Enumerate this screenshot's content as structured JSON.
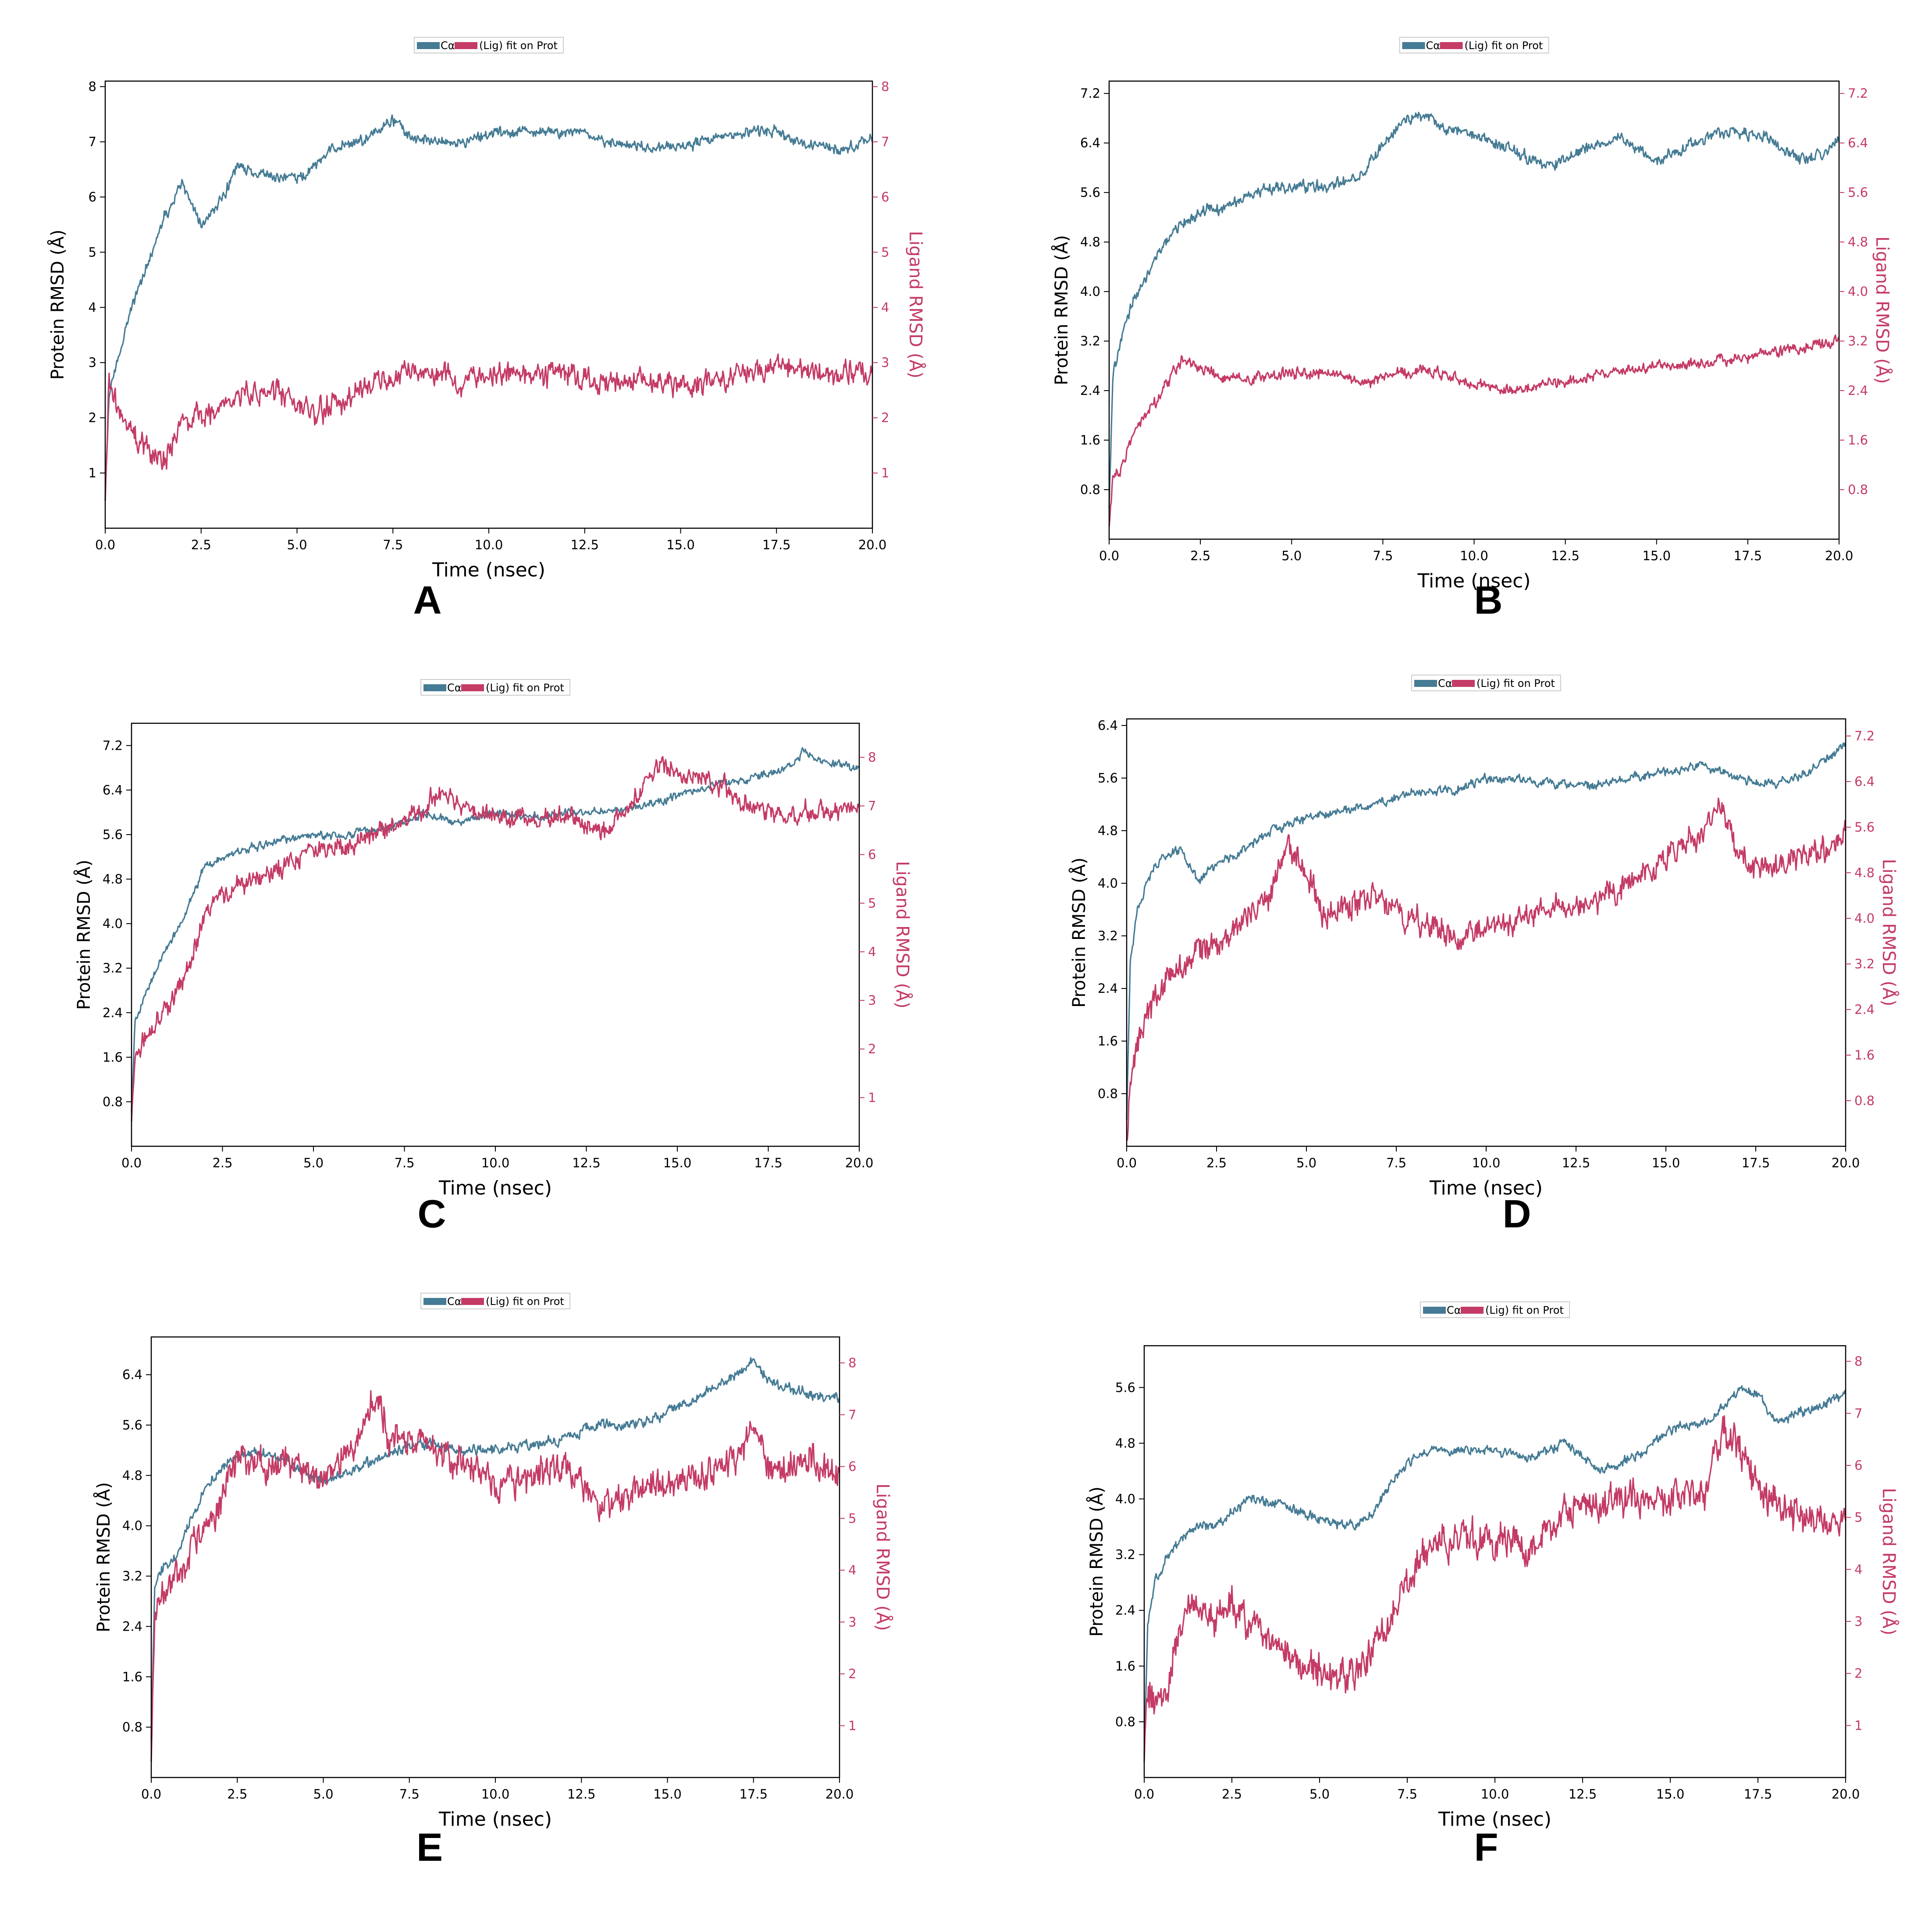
{
  "figure": {
    "panel_letters": [
      "A",
      "B",
      "C",
      "D",
      "E",
      "F"
    ],
    "colors": {
      "protein": "#457B94",
      "ligand": "#C43B65",
      "axis": "#000000",
      "legend_border": "#cccccc"
    }
  },
  "chart_data": [
    {
      "panel": "A",
      "type": "line",
      "legend": {
        "protein_label": "Cα",
        "ligand_label": "(Lig) fit on Prot",
        "placement": "top-center"
      },
      "xlabel": "Time (nsec)",
      "ylabel_left": "Protein RMSD (Å)",
      "ylabel_right": "Ligand RMSD (Å)",
      "xlim": [
        0,
        20
      ],
      "x_ticks": [
        "0.0",
        "2.5",
        "5.0",
        "7.5",
        "10.0",
        "12.5",
        "15.0",
        "17.5",
        "20.0"
      ],
      "ylim_left": [
        0,
        8.1
      ],
      "y_ticks_left": [
        "1",
        "2",
        "3",
        "4",
        "5",
        "6",
        "7",
        "8"
      ],
      "ylim_right": [
        0,
        8.1
      ],
      "y_ticks_right": [
        "1",
        "2",
        "3",
        "4",
        "5",
        "6",
        "7",
        "8"
      ],
      "grid": false,
      "series": [
        {
          "name": "Cα",
          "axis": "left",
          "noise": 0.15,
          "x": [
            0,
            0.1,
            0.3,
            0.6,
            1,
            1.5,
            2,
            2.5,
            3,
            3.5,
            4,
            5,
            6,
            7,
            7.5,
            8,
            9,
            10,
            11,
            12,
            13,
            14,
            15,
            16,
            17,
            17.5,
            18,
            19,
            20
          ],
          "y": [
            0.5,
            2.4,
            3.0,
            3.8,
            4.6,
            5.6,
            6.2,
            5.5,
            5.9,
            6.6,
            6.4,
            6.3,
            6.9,
            7.1,
            7.4,
            7.1,
            7.0,
            7.1,
            7.2,
            7.2,
            7.0,
            6.9,
            6.9,
            7.1,
            7.2,
            7.2,
            7.0,
            6.9,
            7.0
          ]
        },
        {
          "name": "(Lig) fit on Prot",
          "axis": "right",
          "noise": 0.32,
          "x": [
            0,
            0.1,
            0.3,
            0.7,
            1,
            1.5,
            2,
            2.5,
            3,
            4,
            5,
            5.5,
            6,
            7,
            8,
            9,
            10,
            11,
            12,
            13,
            14,
            15,
            16,
            17,
            17.5,
            18,
            19,
            20
          ],
          "y": [
            0.5,
            2.7,
            2.2,
            1.7,
            1.5,
            1.2,
            1.9,
            2.0,
            2.2,
            2.5,
            2.3,
            2.0,
            2.3,
            2.6,
            2.9,
            2.7,
            2.7,
            2.8,
            2.8,
            2.6,
            2.7,
            2.6,
            2.7,
            2.8,
            3.0,
            2.9,
            2.8,
            2.8
          ]
        }
      ]
    },
    {
      "panel": "B",
      "type": "line",
      "legend": {
        "protein_label": "Cα",
        "ligand_label": "(Lig) fit on Prot",
        "placement": "top-center"
      },
      "xlabel": "Time (nsec)",
      "ylabel_left": "Protein RMSD (Å)",
      "ylabel_right": "Ligand RMSD (Å)",
      "xlim": [
        0,
        20
      ],
      "x_ticks": [
        "0.0",
        "2.5",
        "5.0",
        "7.5",
        "10.0",
        "12.5",
        "15.0",
        "17.5",
        "20.0"
      ],
      "ylim_left": [
        0,
        7.4
      ],
      "y_ticks_left": [
        "0.8",
        "1.6",
        "2.4",
        "3.2",
        "4.0",
        "4.8",
        "5.6",
        "6.4",
        "7.2"
      ],
      "ylim_right": [
        0,
        7.4
      ],
      "y_ticks_right": [
        "0.8",
        "1.6",
        "2.4",
        "3.2",
        "4.0",
        "4.8",
        "5.6",
        "6.4",
        "7.2"
      ],
      "grid": false,
      "series": [
        {
          "name": "Cα",
          "axis": "left",
          "noise": 0.14,
          "x": [
            0,
            0.1,
            0.3,
            0.7,
            1,
            1.5,
            2,
            2.5,
            3,
            4,
            5,
            6,
            7,
            7.5,
            8,
            8.5,
            9,
            10,
            11,
            12,
            13,
            14,
            15,
            16,
            17,
            18,
            19,
            20
          ],
          "y": [
            0.5,
            2.6,
            3.2,
            3.9,
            4.2,
            4.8,
            5.1,
            5.3,
            5.3,
            5.6,
            5.7,
            5.7,
            5.9,
            6.4,
            6.7,
            6.9,
            6.7,
            6.5,
            6.3,
            6.0,
            6.3,
            6.5,
            6.1,
            6.4,
            6.6,
            6.5,
            6.1,
            6.4
          ]
        },
        {
          "name": "(Lig) fit on Prot",
          "axis": "right",
          "noise": 0.13,
          "x": [
            0,
            0.1,
            0.3,
            0.7,
            1,
            1.5,
            2,
            2.5,
            3,
            4,
            5,
            6,
            7,
            8,
            9,
            10,
            11,
            12,
            13,
            14,
            15,
            16,
            17,
            18,
            19,
            20
          ],
          "y": [
            0.2,
            1.0,
            1.1,
            1.8,
            2.0,
            2.4,
            2.9,
            2.8,
            2.6,
            2.6,
            2.7,
            2.7,
            2.5,
            2.7,
            2.7,
            2.5,
            2.4,
            2.5,
            2.6,
            2.7,
            2.8,
            2.8,
            2.9,
            3.0,
            3.1,
            3.2
          ]
        }
      ]
    },
    {
      "panel": "C",
      "type": "line",
      "legend": {
        "protein_label": "Cα",
        "ligand_label": "(Lig) fit on Prot",
        "placement": "top-center"
      },
      "xlabel": "Time (nsec)",
      "ylabel_left": "Protein RMSD (Å)",
      "ylabel_right": "Ligand RMSD (Å)",
      "xlim": [
        0,
        20
      ],
      "x_ticks": [
        "0.0",
        "2.5",
        "5.0",
        "7.5",
        "10.0",
        "12.5",
        "15.0",
        "17.5",
        "20.0"
      ],
      "ylim_left": [
        0,
        7.6
      ],
      "y_ticks_left": [
        "0.8",
        "1.6",
        "2.4",
        "3.2",
        "4.0",
        "4.8",
        "5.6",
        "6.4",
        "7.2"
      ],
      "ylim_right": [
        0,
        8.7
      ],
      "y_ticks_right": [
        "1",
        "2",
        "3",
        "4",
        "5",
        "6",
        "7",
        "8"
      ],
      "grid": false,
      "series": [
        {
          "name": "Cα",
          "axis": "left",
          "noise": 0.1,
          "x": [
            0,
            0.1,
            0.3,
            0.7,
            1,
            1.5,
            2,
            2.5,
            3,
            4,
            5,
            6,
            7,
            8,
            9,
            10,
            11,
            12,
            13,
            14,
            15,
            16,
            17,
            18,
            18.5,
            19,
            20
          ],
          "y": [
            0.6,
            2.3,
            2.6,
            3.2,
            3.6,
            4.2,
            5.0,
            5.2,
            5.3,
            5.5,
            5.6,
            5.6,
            5.7,
            6.0,
            5.8,
            6.0,
            5.9,
            6.0,
            6.0,
            6.1,
            6.3,
            6.5,
            6.6,
            6.8,
            7.1,
            6.9,
            6.8
          ]
        },
        {
          "name": "(Lig) fit on Prot",
          "axis": "right",
          "noise": 0.3,
          "x": [
            0,
            0.1,
            0.3,
            0.7,
            1,
            1.5,
            2,
            2.5,
            3,
            4,
            5,
            6,
            7,
            8,
            8.5,
            9,
            10,
            11,
            12,
            13,
            14,
            14.5,
            15,
            16,
            17,
            18,
            19,
            20
          ],
          "y": [
            0.5,
            1.7,
            2.1,
            2.6,
            2.8,
            3.5,
            4.7,
            5.2,
            5.4,
            5.7,
            6.1,
            6.2,
            6.5,
            6.9,
            7.3,
            7.0,
            6.8,
            6.7,
            6.8,
            6.4,
            7.3,
            7.9,
            7.7,
            7.5,
            7.0,
            6.8,
            6.9,
            7.0
          ]
        }
      ]
    },
    {
      "panel": "D",
      "type": "line",
      "legend": {
        "protein_label": "Cα",
        "ligand_label": "(Lig) fit on Prot",
        "placement": "top-center"
      },
      "xlabel": "Time (nsec)",
      "ylabel_left": "Protein RMSD (Å)",
      "ylabel_right": "Ligand RMSD (Å)",
      "xlim": [
        0,
        20
      ],
      "x_ticks": [
        "0.0",
        "2.5",
        "5.0",
        "7.5",
        "10.0",
        "12.5",
        "15.0",
        "17.5",
        "20.0"
      ],
      "ylim_left": [
        0,
        6.5
      ],
      "y_ticks_left": [
        "0.8",
        "1.6",
        "2.4",
        "3.2",
        "4.0",
        "4.8",
        "5.6",
        "6.4"
      ],
      "ylim_right": [
        0,
        7.5
      ],
      "y_ticks_right": [
        "0.8",
        "1.6",
        "2.4",
        "3.2",
        "4.0",
        "4.8",
        "5.6",
        "6.4",
        "7.2"
      ],
      "grid": false,
      "series": [
        {
          "name": "Cα",
          "axis": "left",
          "noise": 0.1,
          "x": [
            0,
            0.1,
            0.3,
            0.7,
            1,
            1.5,
            2,
            2.5,
            3,
            4,
            5,
            6,
            7,
            8,
            9,
            10,
            11,
            12,
            13,
            14,
            15,
            16,
            17,
            18,
            19,
            20
          ],
          "y": [
            0.4,
            2.8,
            3.6,
            4.2,
            4.4,
            4.5,
            4.0,
            4.3,
            4.4,
            4.8,
            5.0,
            5.1,
            5.2,
            5.4,
            5.4,
            5.6,
            5.6,
            5.5,
            5.5,
            5.6,
            5.7,
            5.8,
            5.6,
            5.5,
            5.7,
            6.1
          ]
        },
        {
          "name": "(Lig) fit on Prot",
          "axis": "right",
          "noise": 0.35,
          "x": [
            0,
            0.1,
            0.3,
            0.7,
            1,
            1.5,
            2,
            2.5,
            3,
            4,
            4.5,
            5,
            5.5,
            6,
            7,
            8,
            9,
            10,
            11,
            12,
            13,
            14,
            15,
            16,
            16.5,
            17,
            17.5,
            18,
            19,
            20
          ],
          "y": [
            0.1,
            1.2,
            1.8,
            2.4,
            2.9,
            3.2,
            3.5,
            3.5,
            3.8,
            4.5,
            5.2,
            4.8,
            4.0,
            4.2,
            4.3,
            4.0,
            3.7,
            3.8,
            4.0,
            4.2,
            4.3,
            4.6,
            5.0,
            5.5,
            6.0,
            5.2,
            4.8,
            5.0,
            5.0,
            5.5
          ]
        }
      ]
    },
    {
      "panel": "E",
      "type": "line",
      "legend": {
        "protein_label": "Cα",
        "ligand_label": "(Lig) fit on Prot",
        "placement": "top-center"
      },
      "xlabel": "Time (nsec)",
      "ylabel_left": "Protein RMSD (Å)",
      "ylabel_right": "Ligand RMSD (Å)",
      "xlim": [
        0,
        20
      ],
      "x_ticks": [
        "0.0",
        "2.5",
        "5.0",
        "7.5",
        "10.0",
        "12.5",
        "15.0",
        "17.5",
        "20.0"
      ],
      "ylim_left": [
        0,
        7.0
      ],
      "y_ticks_left": [
        "0.8",
        "1.6",
        "2.4",
        "3.2",
        "4.0",
        "4.8",
        "5.6",
        "6.4"
      ],
      "ylim_right": [
        0,
        8.5
      ],
      "y_ticks_right": [
        "1",
        "2",
        "3",
        "4",
        "5",
        "6",
        "7",
        "8"
      ],
      "grid": false,
      "series": [
        {
          "name": "Cα",
          "axis": "left",
          "noise": 0.12,
          "x": [
            0,
            0.1,
            0.3,
            0.7,
            1,
            1.5,
            2,
            2.5,
            3,
            4,
            5,
            6,
            7,
            8,
            9,
            10,
            11,
            12,
            13,
            14,
            15,
            16,
            17,
            17.5,
            18,
            19,
            20
          ],
          "y": [
            0.6,
            3.0,
            3.3,
            3.5,
            3.9,
            4.5,
            4.9,
            5.1,
            5.2,
            5.0,
            4.7,
            4.9,
            5.2,
            5.3,
            5.2,
            5.2,
            5.3,
            5.4,
            5.6,
            5.6,
            5.8,
            6.1,
            6.4,
            6.6,
            6.3,
            6.1,
            6.0
          ]
        },
        {
          "name": "(Lig) fit on Prot",
          "axis": "right",
          "noise": 0.45,
          "x": [
            0,
            0.1,
            0.3,
            0.7,
            1,
            1.5,
            2,
            2.5,
            3,
            4,
            5,
            6,
            6.5,
            7,
            8,
            9,
            10,
            11,
            12,
            13,
            14,
            15,
            16,
            17,
            17.5,
            18,
            19,
            20
          ],
          "y": [
            0.3,
            3.2,
            3.5,
            4.0,
            4.2,
            4.8,
            5.3,
            6.2,
            6.0,
            6.0,
            5.8,
            6.5,
            7.5,
            6.5,
            6.4,
            6.0,
            5.6,
            5.8,
            6.0,
            5.2,
            5.6,
            5.7,
            5.8,
            6.2,
            6.8,
            5.9,
            6.2,
            5.8
          ]
        }
      ]
    },
    {
      "panel": "F",
      "type": "line",
      "legend": {
        "protein_label": "Cα",
        "ligand_label": "(Lig) fit on Prot",
        "placement": "top-center"
      },
      "xlabel": "Time (nsec)",
      "ylabel_left": "Protein RMSD (Å)",
      "ylabel_right": "Ligand RMSD (Å)",
      "xlim": [
        0,
        20
      ],
      "x_ticks": [
        "0.0",
        "2.5",
        "5.0",
        "7.5",
        "10.0",
        "12.5",
        "15.0",
        "17.5",
        "20.0"
      ],
      "ylim_left": [
        0,
        6.2
      ],
      "y_ticks_left": [
        "0.8",
        "1.6",
        "2.4",
        "3.2",
        "4.0",
        "4.8",
        "5.6"
      ],
      "ylim_right": [
        0,
        8.3
      ],
      "y_ticks_right": [
        "1",
        "2",
        "3",
        "4",
        "5",
        "6",
        "7",
        "8"
      ],
      "grid": false,
      "series": [
        {
          "name": "Cα",
          "axis": "left",
          "noise": 0.1,
          "x": [
            0,
            0.1,
            0.3,
            0.7,
            1,
            1.5,
            2,
            2.5,
            3,
            4,
            5,
            6,
            6.5,
            7,
            7.5,
            8,
            9,
            10,
            11,
            12,
            13,
            14,
            15,
            16,
            16.5,
            17,
            17.5,
            18,
            19,
            20
          ],
          "y": [
            0.3,
            2.2,
            2.8,
            3.2,
            3.4,
            3.6,
            3.6,
            3.8,
            4.0,
            3.9,
            3.7,
            3.6,
            3.8,
            4.2,
            4.5,
            4.7,
            4.7,
            4.7,
            4.6,
            4.8,
            4.4,
            4.6,
            5.0,
            5.1,
            5.3,
            5.6,
            5.5,
            5.1,
            5.3,
            5.5
          ]
        },
        {
          "name": "(Lig) fit on Prot",
          "axis": "right",
          "noise": 0.5,
          "x": [
            0,
            0.1,
            0.3,
            0.7,
            1,
            1.5,
            2,
            2.5,
            3,
            4,
            5,
            6,
            6.5,
            7,
            7.5,
            8,
            9,
            10,
            11,
            12,
            13,
            14,
            15,
            16,
            16.5,
            17,
            17.5,
            18,
            19,
            20
          ],
          "y": [
            0.3,
            1.5,
            1.6,
            1.8,
            3.0,
            3.5,
            3.0,
            3.4,
            3.0,
            2.3,
            2.0,
            2.0,
            2.5,
            3.0,
            3.8,
            4.3,
            4.6,
            4.7,
            4.4,
            5.1,
            5.3,
            5.4,
            5.3,
            5.6,
            6.6,
            6.2,
            5.6,
            5.2,
            5.0,
            5.0
          ]
        }
      ]
    }
  ]
}
